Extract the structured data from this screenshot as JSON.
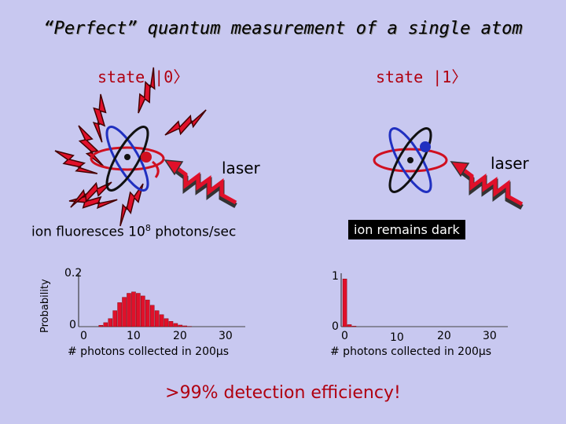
{
  "title": "“Perfect” quantum measurement of a single atom",
  "state0_label": "state |0〉",
  "state1_label": "state |1〉",
  "laser_left": "laser",
  "laser_right": "laser",
  "left_caption_pre": "ion fluoresces 10",
  "left_caption_sup": "8",
  "left_caption_post": " photons/sec",
  "right_caption": "ion remains dark",
  "y_axis_label": "Probability",
  "footer": ">99% detection efficiency!",
  "colors": {
    "background": "#c8c8f0",
    "bars": "#e0102a",
    "accent": "#b00010"
  },
  "chart_data": [
    {
      "type": "bar",
      "ylabel": "Probability",
      "xlabel": "# photons collected in 200μs",
      "xticks": [
        "0",
        "10",
        "20",
        "30"
      ],
      "yticks": [
        "0",
        "0.2"
      ],
      "xlim": [
        0,
        35
      ],
      "ylim": [
        0,
        0.2
      ],
      "x": [
        0,
        1,
        2,
        3,
        4,
        5,
        6,
        7,
        8,
        9,
        10,
        11,
        12,
        13,
        14,
        15,
        16,
        17,
        18,
        19,
        20,
        21,
        22,
        23,
        24,
        25,
        26,
        27,
        28,
        29,
        30,
        31,
        32,
        33,
        34
      ],
      "values": [
        0,
        0,
        0,
        0,
        0.005,
        0.015,
        0.03,
        0.06,
        0.09,
        0.11,
        0.125,
        0.13,
        0.125,
        0.115,
        0.1,
        0.08,
        0.06,
        0.045,
        0.03,
        0.02,
        0.012,
        0.006,
        0.003,
        0.001,
        0,
        0,
        0,
        0,
        0,
        0,
        0,
        0,
        0,
        0,
        0
      ]
    },
    {
      "type": "bar",
      "xlabel": "# photons collected in 200μs",
      "xticks": [
        "0",
        "10",
        "20",
        "30"
      ],
      "yticks": [
        "0",
        "1"
      ],
      "xlim": [
        0,
        35
      ],
      "ylim": [
        0,
        1
      ],
      "x": [
        0,
        1,
        2
      ],
      "values": [
        0.95,
        0.04,
        0.01
      ]
    }
  ]
}
